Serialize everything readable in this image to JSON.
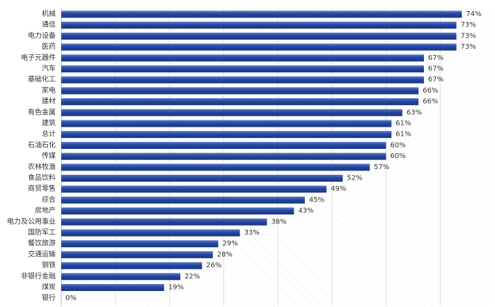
{
  "chart_data": {
    "type": "bar",
    "orientation": "horizontal",
    "title": "",
    "xlabel": "",
    "ylabel": "",
    "xlim": [
      0,
      80
    ],
    "grid": true,
    "legend": "none",
    "categories": [
      "机械",
      "通信",
      "电力设备",
      "医药",
      "电子元器件",
      "汽车",
      "基础化工",
      "家电",
      "建材",
      "有色金属",
      "建筑",
      "总计",
      "石油石化",
      "传媒",
      "农林牧渔",
      "食品饮料",
      "商贸零售",
      "综合",
      "房地产",
      "电力及公用事业",
      "国防军工",
      "餐饮旅游",
      "交通运输",
      "钢铁",
      "非银行金融",
      "煤炭",
      "银行"
    ],
    "values": [
      74,
      73,
      73,
      73,
      67,
      67,
      67,
      66,
      66,
      63,
      61,
      61,
      60,
      60,
      57,
      52,
      49,
      45,
      43,
      38,
      33,
      29,
      28,
      26,
      22,
      19,
      0
    ],
    "value_labels": [
      "74%",
      "73%",
      "73%",
      "73%",
      "67%",
      "67%",
      "67%",
      "66%",
      "66%",
      "63%",
      "61%",
      "61%",
      "60%",
      "60%",
      "57%",
      "52%",
      "49%",
      "45%",
      "43%",
      "38%",
      "33%",
      "29%",
      "28%",
      "26%",
      "22%",
      "19%",
      "0%"
    ],
    "colors": {
      "bar": "#2347a0",
      "bar_highlight": "#5a78c4",
      "grid": "#dddddd",
      "background_hatch": "#ececec"
    }
  }
}
